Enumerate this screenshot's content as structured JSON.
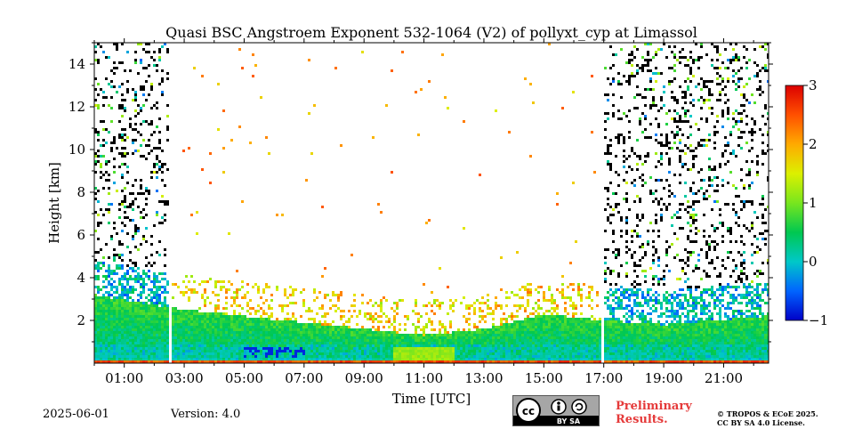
{
  "chart_data": {
    "type": "heatmap",
    "title": "Quasi BSC Angstroem Exponent 532-1064 (V2) of pollyxt_cyp at Limassol",
    "xlabel": "Time [UTC]",
    "ylabel": "Height [km]",
    "xlim": [
      0,
      22.5
    ],
    "ylim": [
      0,
      15
    ],
    "x_ticks": [
      1,
      3,
      5,
      7,
      9,
      11,
      13,
      15,
      17,
      19,
      21
    ],
    "x_tick_labels": [
      "01:00",
      "03:00",
      "05:00",
      "07:00",
      "09:00",
      "11:00",
      "13:00",
      "15:00",
      "17:00",
      "19:00",
      "21:00"
    ],
    "y_ticks": [
      2,
      4,
      6,
      8,
      10,
      12,
      14
    ],
    "y_tick_labels": [
      "2",
      "4",
      "6",
      "8",
      "10",
      "12",
      "14"
    ],
    "colorbar": {
      "min": -1,
      "max": 3,
      "ticks": [
        -1,
        0,
        1,
        2,
        3
      ],
      "tick_labels": [
        "−1",
        "0",
        "1",
        "2",
        "3"
      ],
      "colormap": [
        "#0000c8",
        "#0064ff",
        "#00c8c8",
        "#00c850",
        "#78e61e",
        "#dcf000",
        "#ffaa00",
        "#ff5000",
        "#dc0000"
      ]
    },
    "data_gaps": [
      [
        2.45,
        2.62
      ],
      [
        16.9,
        17.05
      ]
    ],
    "aerosol_layer_top_km": [
      [
        0,
        3.2
      ],
      [
        2.5,
        2.6
      ],
      [
        5,
        2.2
      ],
      [
        9,
        1.6
      ],
      [
        11,
        1.3
      ],
      [
        13,
        1.6
      ],
      [
        15,
        2.3
      ],
      [
        17,
        2.0
      ],
      [
        19,
        1.8
      ],
      [
        22.5,
        2.2
      ]
    ]
  },
  "footer": {
    "date": "2025-06-01",
    "version": "Version: 4.0",
    "license_badge": "BY SA",
    "preliminary_line1": "Preliminary",
    "preliminary_line2": "Results.",
    "copyright_line1": "© TROPOS & ECoE 2025.",
    "copyright_line2": "CC BY SA 4.0 License."
  }
}
